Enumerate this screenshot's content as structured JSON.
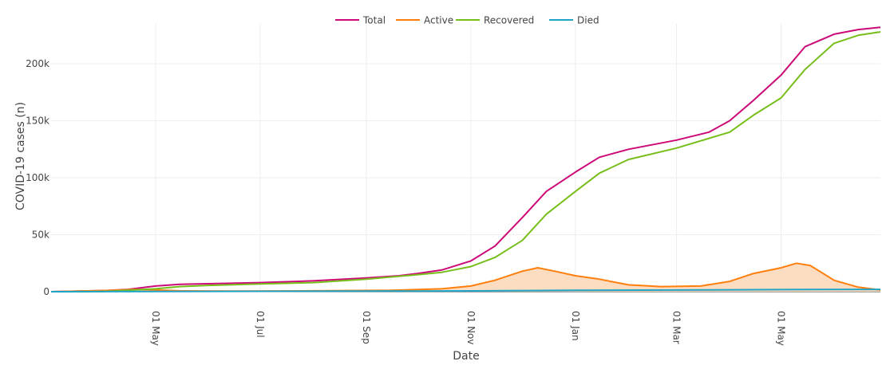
{
  "chart_data": {
    "type": "line",
    "xlabel": "Date",
    "ylabel": "COVID-19 cases (n)",
    "ylim": [
      0,
      235000
    ],
    "x_start": "2020-03-01",
    "x_end": "2021-06-28",
    "xticks": [
      {
        "date": "2020-05-01",
        "label": "01 May"
      },
      {
        "date": "2020-07-01",
        "label": "01 Jul"
      },
      {
        "date": "2020-09-01",
        "label": "01 Sep"
      },
      {
        "date": "2020-11-01",
        "label": "01 Nov"
      },
      {
        "date": "2021-01-01",
        "label": "01 Jan"
      },
      {
        "date": "2021-03-01",
        "label": "01 Mar"
      },
      {
        "date": "2021-05-01",
        "label": "01 May"
      }
    ],
    "yticks": [
      {
        "value": 0,
        "label": "0"
      },
      {
        "value": 50000,
        "label": "50k"
      },
      {
        "value": 100000,
        "label": "100k"
      },
      {
        "value": 150000,
        "label": "150k"
      },
      {
        "value": 200000,
        "label": "200k"
      }
    ],
    "series": [
      {
        "name": "Total",
        "color": "#cc0a77",
        "fill": false,
        "points": [
          [
            "2020-03-01",
            0
          ],
          [
            "2020-04-01",
            1000
          ],
          [
            "2020-04-15",
            2000
          ],
          [
            "2020-05-01",
            5000
          ],
          [
            "2020-05-15",
            6500
          ],
          [
            "2020-06-01",
            7000
          ],
          [
            "2020-07-01",
            8000
          ],
          [
            "2020-08-01",
            9500
          ],
          [
            "2020-09-01",
            12000
          ],
          [
            "2020-09-20",
            14000
          ],
          [
            "2020-10-01",
            16000
          ],
          [
            "2020-10-15",
            19000
          ],
          [
            "2020-11-01",
            27000
          ],
          [
            "2020-11-15",
            40000
          ],
          [
            "2020-12-01",
            65000
          ],
          [
            "2020-12-15",
            88000
          ],
          [
            "2021-01-01",
            105000
          ],
          [
            "2021-01-15",
            118000
          ],
          [
            "2021-02-01",
            125000
          ],
          [
            "2021-03-01",
            133000
          ],
          [
            "2021-03-20",
            140000
          ],
          [
            "2021-04-01",
            150000
          ],
          [
            "2021-04-15",
            168000
          ],
          [
            "2021-05-01",
            190000
          ],
          [
            "2021-05-15",
            215000
          ],
          [
            "2021-06-01",
            226000
          ],
          [
            "2021-06-15",
            230000
          ],
          [
            "2021-06-28",
            232000
          ]
        ]
      },
      {
        "name": "Active",
        "color": "#ff7f0e",
        "fill": true,
        "fill_color": "#fdd7b6",
        "points": [
          [
            "2020-03-01",
            0
          ],
          [
            "2020-04-01",
            1000
          ],
          [
            "2020-04-20",
            2000
          ],
          [
            "2020-05-01",
            1500
          ],
          [
            "2020-05-15",
            800
          ],
          [
            "2020-06-15",
            500
          ],
          [
            "2020-08-01",
            800
          ],
          [
            "2020-09-15",
            1200
          ],
          [
            "2020-10-15",
            2500
          ],
          [
            "2020-11-01",
            5000
          ],
          [
            "2020-11-15",
            10000
          ],
          [
            "2020-12-01",
            18000
          ],
          [
            "2020-12-10",
            21000
          ],
          [
            "2020-12-20",
            18000
          ],
          [
            "2021-01-01",
            14000
          ],
          [
            "2021-01-15",
            11000
          ],
          [
            "2021-02-01",
            6000
          ],
          [
            "2021-02-20",
            4500
          ],
          [
            "2021-03-15",
            5000
          ],
          [
            "2021-04-01",
            9000
          ],
          [
            "2021-04-15",
            16000
          ],
          [
            "2021-05-01",
            21000
          ],
          [
            "2021-05-10",
            25000
          ],
          [
            "2021-05-18",
            23000
          ],
          [
            "2021-06-01",
            10000
          ],
          [
            "2021-06-15",
            4000
          ],
          [
            "2021-06-28",
            1500
          ]
        ]
      },
      {
        "name": "Recovered",
        "color": "#77be1b",
        "fill": false,
        "points": [
          [
            "2020-03-01",
            0
          ],
          [
            "2020-04-01",
            200
          ],
          [
            "2020-05-01",
            2500
          ],
          [
            "2020-05-15",
            4500
          ],
          [
            "2020-06-01",
            5500
          ],
          [
            "2020-07-01",
            6800
          ],
          [
            "2020-08-01",
            8000
          ],
          [
            "2020-09-01",
            11000
          ],
          [
            "2020-10-01",
            15000
          ],
          [
            "2020-10-15",
            17000
          ],
          [
            "2020-11-01",
            22000
          ],
          [
            "2020-11-15",
            30000
          ],
          [
            "2020-12-01",
            45000
          ],
          [
            "2020-12-15",
            68000
          ],
          [
            "2021-01-01",
            88000
          ],
          [
            "2021-01-15",
            104000
          ],
          [
            "2021-02-01",
            116000
          ],
          [
            "2021-03-01",
            126000
          ],
          [
            "2021-04-01",
            140000
          ],
          [
            "2021-04-15",
            155000
          ],
          [
            "2021-05-01",
            170000
          ],
          [
            "2021-05-15",
            195000
          ],
          [
            "2021-06-01",
            218000
          ],
          [
            "2021-06-15",
            225000
          ],
          [
            "2021-06-28",
            228000
          ]
        ]
      },
      {
        "name": "Died",
        "color": "#1fa4c8",
        "fill": false,
        "points": [
          [
            "2020-03-01",
            0
          ],
          [
            "2020-06-01",
            300
          ],
          [
            "2020-09-01",
            500
          ],
          [
            "2020-11-01",
            700
          ],
          [
            "2021-01-01",
            1200
          ],
          [
            "2021-03-01",
            1500
          ],
          [
            "2021-05-01",
            1800
          ],
          [
            "2021-06-28",
            2000
          ]
        ]
      }
    ]
  }
}
